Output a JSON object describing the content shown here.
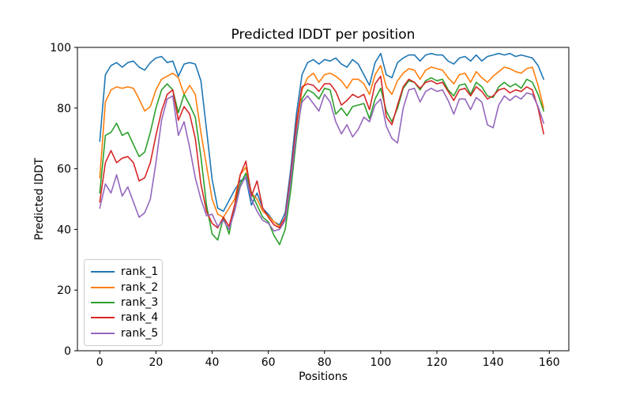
{
  "figure": {
    "title": "Predicted lDDT per position",
    "xlabel": "Positions",
    "ylabel": "Predicted lDDT"
  },
  "chart_data": {
    "type": "line",
    "title": "Predicted lDDT per position",
    "xlabel": "Positions",
    "ylabel": "Predicted lDDT",
    "xlim": [
      -7.95,
      166.95
    ],
    "ylim": [
      0,
      100
    ],
    "xticks": [
      0,
      20,
      40,
      60,
      80,
      100,
      120,
      140,
      160
    ],
    "yticks": [
      0,
      20,
      40,
      60,
      80,
      100
    ],
    "grid": false,
    "legend_position": "lower left",
    "x_start": 0,
    "x_step": 2,
    "series": [
      {
        "name": "rank_1",
        "color": "#1f77b4",
        "values": [
          69,
          91,
          94,
          95,
          93.5,
          95,
          95.5,
          93.5,
          92.5,
          95,
          96.5,
          97,
          95,
          95.5,
          90.5,
          94.5,
          95,
          94.5,
          89,
          73,
          56.5,
          47,
          46,
          49.5,
          53,
          56,
          57,
          48,
          52,
          47,
          45,
          42.5,
          41.5,
          45.5,
          60,
          78,
          91,
          95,
          96,
          94.5,
          96,
          95.5,
          96.5,
          94.5,
          93.5,
          96,
          94.5,
          91,
          87.5,
          95,
          98,
          91,
          90,
          95,
          96.5,
          97.5,
          97.5,
          95.5,
          97.5,
          98,
          97.5,
          97.5,
          95.5,
          94.5,
          96.5,
          97,
          95.5,
          97.5,
          95.5,
          97,
          97.5,
          98,
          97.5,
          98,
          97,
          97.5,
          97,
          96.5,
          94,
          89.5
        ]
      },
      {
        "name": "rank_2",
        "color": "#ff7f0e",
        "values": [
          57,
          82,
          86,
          87,
          86.5,
          87,
          86.5,
          83,
          79,
          80.5,
          86,
          89.5,
          90.5,
          91.5,
          90,
          84.5,
          87.5,
          84.5,
          72,
          61,
          50,
          45,
          44,
          47,
          50,
          58,
          60.5,
          52,
          50,
          46,
          44.5,
          42.5,
          41,
          44,
          57,
          74,
          86,
          90,
          91.5,
          88.5,
          91,
          91.5,
          90.5,
          89,
          86.5,
          89.5,
          89.5,
          88,
          84.5,
          91,
          94,
          87,
          84.5,
          89,
          91.5,
          93,
          92.5,
          89.5,
          92.5,
          93.5,
          93,
          92.5,
          90,
          88,
          91,
          91.5,
          88.5,
          92,
          90,
          88.5,
          90.5,
          92,
          93.5,
          93,
          92,
          91.5,
          93,
          93.5,
          87.5,
          80
        ]
      },
      {
        "name": "rank_3",
        "color": "#2ca02c",
        "values": [
          52,
          71,
          72,
          75,
          71,
          72,
          68,
          64,
          65.5,
          72,
          80,
          86,
          88,
          86,
          78.5,
          84.5,
          81,
          77,
          64,
          48,
          38.5,
          36.5,
          44,
          38.5,
          48,
          55,
          58.5,
          52,
          48,
          44,
          42.5,
          38,
          35,
          40,
          53,
          70,
          83,
          86,
          85,
          83,
          86.5,
          86,
          78,
          80,
          77.5,
          80.5,
          81,
          81.5,
          76.5,
          83,
          86.5,
          79,
          75.5,
          80,
          86.5,
          89,
          88.5,
          86,
          89,
          90,
          89,
          89.5,
          86,
          84,
          87.5,
          88,
          84.5,
          88.5,
          87,
          84,
          83.5,
          87,
          88.5,
          87,
          88,
          86.5,
          89.5,
          88.5,
          84.5,
          79
        ]
      },
      {
        "name": "rank_4",
        "color": "#d62728",
        "values": [
          49,
          62,
          66,
          62,
          63.5,
          64,
          62,
          56,
          57,
          62,
          71,
          79,
          84.5,
          86,
          76,
          80.5,
          78,
          70,
          55,
          46,
          42,
          40.5,
          44,
          41,
          48,
          58,
          62.5,
          51,
          56,
          47,
          44,
          41.5,
          40.5,
          44,
          58,
          75,
          87,
          88,
          87.5,
          85.5,
          88,
          88,
          85.5,
          81,
          82.5,
          84.5,
          83.5,
          84.5,
          79.5,
          88,
          90.5,
          77,
          74.5,
          81,
          87,
          89.5,
          88.5,
          86.5,
          88.5,
          89,
          88,
          88.5,
          85.5,
          82.5,
          86,
          86.5,
          84,
          87,
          85.5,
          83,
          84,
          86,
          86.5,
          85,
          86,
          85.5,
          87,
          86,
          80,
          71.5
        ]
      },
      {
        "name": "rank_5",
        "color": "#9467bd",
        "values": [
          47,
          55,
          52,
          58,
          51,
          54,
          49,
          44,
          45.5,
          50,
          62,
          76,
          83,
          84,
          71,
          75.5,
          67,
          57,
          50,
          44.5,
          45,
          41,
          43,
          40,
          46,
          54,
          57.5,
          50,
          46,
          43,
          42,
          39.5,
          40,
          43,
          56,
          72,
          82,
          84,
          81.5,
          79,
          84.5,
          82,
          75.5,
          71.5,
          74.5,
          70.5,
          73,
          77,
          75.5,
          81,
          83,
          74,
          70,
          68.5,
          80,
          86,
          86.5,
          82,
          85.5,
          86.5,
          85.5,
          86,
          82.5,
          78,
          83,
          83,
          79.5,
          83.5,
          82,
          74.5,
          73.5,
          81,
          84,
          82.5,
          84,
          83,
          85,
          84.5,
          80.5,
          75
        ]
      }
    ]
  }
}
